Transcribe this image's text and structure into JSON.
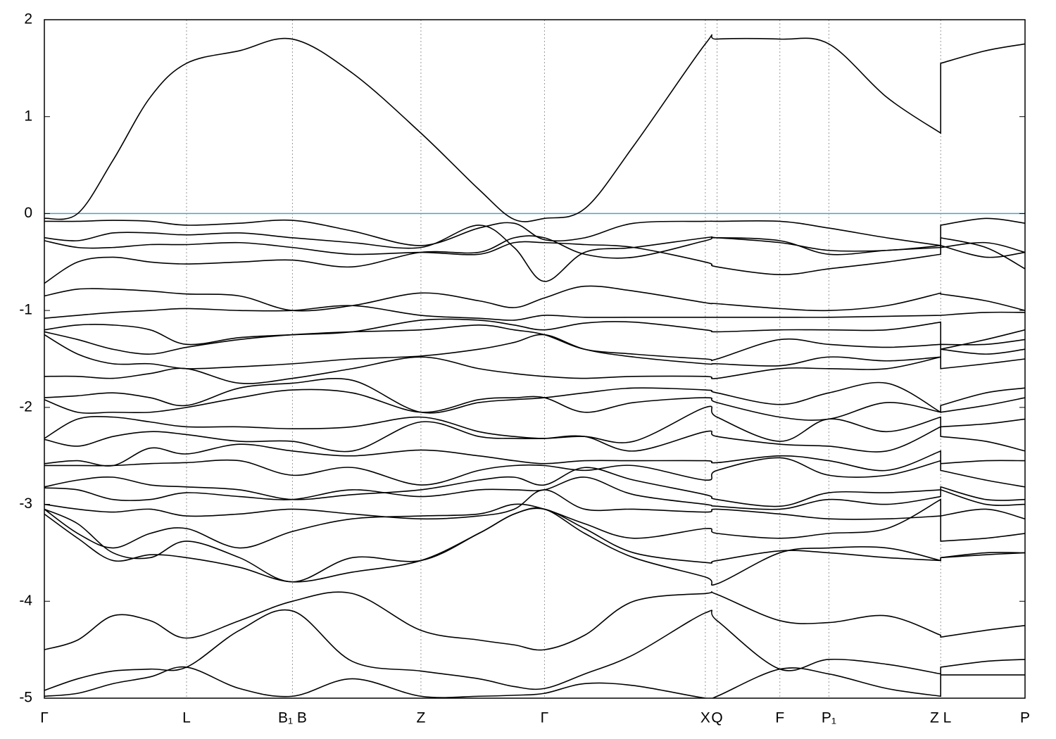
{
  "chart_data": {
    "type": "line",
    "color": "#000000",
    "xgrid": true,
    "ygrid": false,
    "fermi": {
      "value": 0,
      "color": "#4ba5c4"
    },
    "xlim": [
      0,
      1
    ],
    "ylim": [
      -5,
      2
    ],
    "yticks": [
      -5,
      -4,
      -3,
      -2,
      -1,
      0,
      1,
      2
    ],
    "xticks": [
      {
        "value": 0,
        "label": "Γ"
      },
      {
        "value": 0.145,
        "label": "L"
      },
      {
        "value": 0.253,
        "label": "B₁ B"
      },
      {
        "value": 0.384,
        "label": "Z"
      },
      {
        "value": 0.51,
        "label": "Γ"
      },
      {
        "value": 0.674,
        "label": "X"
      },
      {
        "value": 0.686,
        "label": "Q"
      },
      {
        "value": 0.75,
        "label": "F"
      },
      {
        "value": 0.8,
        "label": "P₁"
      },
      {
        "value": 0.914,
        "label": "Z L"
      },
      {
        "value": 1,
        "label": "P"
      }
    ],
    "x": [
      0,
      0.034,
      0.07,
      0.108,
      0.145,
      0.199,
      0.253,
      0.314,
      0.384,
      0.443,
      0.479,
      0.51,
      0.551,
      0.601,
      0.674,
      0.686,
      0.75,
      0.8,
      0.859,
      0.914,
      0.914,
      0.96,
      1
    ],
    "series": [
      {
        "values": [
          -0.05,
          0.0,
          0.55,
          1.2,
          1.55,
          1.68,
          1.8,
          1.45,
          0.83,
          0.25,
          -0.06,
          -0.05,
          0.05,
          0.7,
          1.75,
          1.8,
          1.8,
          1.75,
          1.2,
          0.83,
          1.55,
          1.68,
          1.75
        ]
      },
      {
        "values": [
          -0.08,
          -0.08,
          -0.07,
          -0.08,
          -0.12,
          -0.1,
          -0.07,
          -0.18,
          -0.33,
          -0.15,
          -0.1,
          -0.27,
          -0.25,
          -0.1,
          -0.08,
          -0.08,
          -0.08,
          -0.15,
          -0.25,
          -0.33,
          -0.12,
          -0.05,
          -0.1
        ]
      },
      {
        "values": [
          -0.25,
          -0.28,
          -0.2,
          -0.2,
          -0.22,
          -0.2,
          -0.25,
          -0.3,
          -0.35,
          -0.12,
          -0.35,
          -0.7,
          -0.4,
          -0.35,
          -0.25,
          -0.25,
          -0.3,
          -0.38,
          -0.38,
          -0.33,
          -0.35,
          -0.3,
          -0.4
        ]
      },
      {
        "values": [
          -0.28,
          -0.35,
          -0.35,
          -0.32,
          -0.32,
          -0.3,
          -0.35,
          -0.42,
          -0.4,
          -0.42,
          -0.3,
          -0.3,
          -0.32,
          -0.35,
          -0.5,
          -0.55,
          -0.63,
          -0.57,
          -0.5,
          -0.42,
          -0.25,
          -0.35,
          -0.57
        ]
      },
      {
        "values": [
          -0.72,
          -0.5,
          -0.45,
          -0.5,
          -0.52,
          -0.5,
          -0.48,
          -0.55,
          -0.4,
          -0.4,
          -0.25,
          -0.25,
          -0.42,
          -0.45,
          -0.28,
          -0.25,
          -0.28,
          -0.42,
          -0.38,
          -0.35,
          -0.33,
          -0.45,
          -0.4
        ]
      },
      {
        "values": [
          -0.85,
          -0.78,
          -0.78,
          -0.8,
          -0.83,
          -0.85,
          -1.0,
          -0.95,
          -0.82,
          -0.9,
          -0.97,
          -0.87,
          -0.75,
          -0.8,
          -0.92,
          -0.93,
          -0.98,
          -1.0,
          -0.95,
          -0.82,
          -0.83,
          -0.9,
          -1.0
        ]
      },
      {
        "values": [
          -1.08,
          -1.05,
          -1.02,
          -1.0,
          -0.98,
          -1.0,
          -1.0,
          -0.95,
          -1.05,
          -1.08,
          -1.1,
          -1.05,
          -1.07,
          -1.07,
          -1.07,
          -1.07,
          -1.07,
          -1.07,
          -1.06,
          -1.05,
          -1.05,
          -1.02,
          -1.02
        ]
      },
      {
        "values": [
          -1.2,
          -1.15,
          -1.15,
          -1.2,
          -1.35,
          -1.28,
          -1.25,
          -1.22,
          -1.1,
          -1.1,
          -1.15,
          -1.2,
          -1.13,
          -1.12,
          -1.2,
          -1.22,
          -1.2,
          -1.2,
          -1.2,
          -1.12,
          -1.4,
          -1.3,
          -1.2
        ]
      },
      {
        "values": [
          -1.22,
          -1.3,
          -1.4,
          -1.45,
          -1.38,
          -1.3,
          -1.25,
          -1.22,
          -1.2,
          -1.15,
          -1.2,
          -1.25,
          -1.4,
          -1.45,
          -1.5,
          -1.5,
          -1.3,
          -1.35,
          -1.38,
          -1.35,
          -1.35,
          -1.35,
          -1.3
        ]
      },
      {
        "values": [
          -1.25,
          -1.45,
          -1.55,
          -1.55,
          -1.6,
          -1.58,
          -1.55,
          -1.5,
          -1.47,
          -1.4,
          -1.33,
          -1.25,
          -1.4,
          -1.48,
          -1.55,
          -1.55,
          -1.57,
          -1.48,
          -1.52,
          -1.48,
          -1.6,
          -1.55,
          -1.5
        ]
      },
      {
        "values": [
          -1.68,
          -1.68,
          -1.7,
          -1.65,
          -1.6,
          -1.75,
          -1.7,
          -1.6,
          -1.48,
          -1.6,
          -1.65,
          -1.68,
          -1.7,
          -1.68,
          -1.68,
          -1.7,
          -1.6,
          -1.6,
          -1.6,
          -1.48,
          -1.4,
          -1.45,
          -1.4
        ]
      },
      {
        "values": [
          -1.9,
          -1.88,
          -1.85,
          -1.9,
          -1.98,
          -1.8,
          -1.75,
          -1.72,
          -2.05,
          -1.95,
          -1.92,
          -1.9,
          -1.85,
          -1.8,
          -1.82,
          -1.85,
          -1.97,
          -1.85,
          -1.75,
          -2.05,
          -1.98,
          -1.85,
          -1.8
        ]
      },
      {
        "values": [
          -1.92,
          -2.05,
          -2.05,
          -2.05,
          -2.0,
          -1.9,
          -1.82,
          -1.85,
          -2.05,
          -1.92,
          -1.9,
          -1.9,
          -2.05,
          -1.95,
          -1.9,
          -1.95,
          -2.1,
          -2.12,
          -1.95,
          -2.05,
          -2.05,
          -1.98,
          -1.9
        ]
      },
      {
        "values": [
          -2.32,
          -2.12,
          -2.1,
          -2.15,
          -2.2,
          -2.2,
          -2.22,
          -2.2,
          -2.1,
          -2.25,
          -2.3,
          -2.32,
          -2.3,
          -2.35,
          -2.0,
          -2.1,
          -2.35,
          -2.12,
          -2.25,
          -2.1,
          -2.2,
          -2.17,
          -2.12
        ]
      },
      {
        "values": [
          -2.33,
          -2.4,
          -2.3,
          -2.25,
          -2.28,
          -2.35,
          -2.35,
          -2.45,
          -2.15,
          -2.3,
          -2.32,
          -2.32,
          -2.3,
          -2.45,
          -2.25,
          -2.3,
          -2.38,
          -2.4,
          -2.45,
          -2.2,
          -2.3,
          -2.35,
          -2.45
        ]
      },
      {
        "values": [
          -2.58,
          -2.55,
          -2.6,
          -2.42,
          -2.48,
          -2.38,
          -2.45,
          -2.5,
          -2.44,
          -2.5,
          -2.55,
          -2.58,
          -2.55,
          -2.55,
          -2.55,
          -2.57,
          -2.5,
          -2.55,
          -2.65,
          -2.45,
          -2.58,
          -2.55,
          -2.55
        ]
      },
      {
        "values": [
          -2.6,
          -2.6,
          -2.6,
          -2.58,
          -2.57,
          -2.55,
          -2.7,
          -2.62,
          -2.8,
          -2.65,
          -2.6,
          -2.6,
          -2.65,
          -2.6,
          -2.75,
          -2.65,
          -2.52,
          -2.7,
          -2.7,
          -2.55,
          -2.65,
          -2.75,
          -2.82
        ]
      },
      {
        "values": [
          -2.82,
          -2.75,
          -2.72,
          -2.8,
          -2.82,
          -2.85,
          -2.95,
          -2.9,
          -2.85,
          -2.75,
          -2.72,
          -2.8,
          -2.62,
          -2.75,
          -2.9,
          -2.95,
          -3.02,
          -2.88,
          -2.88,
          -2.85,
          -2.82,
          -2.95,
          -2.95
        ]
      },
      {
        "values": [
          -2.83,
          -2.85,
          -2.95,
          -2.95,
          -2.88,
          -2.92,
          -2.95,
          -2.85,
          -2.92,
          -2.85,
          -2.85,
          -2.85,
          -2.72,
          -2.9,
          -3.0,
          -3.02,
          -3.05,
          -2.95,
          -3.0,
          -2.92,
          -2.85,
          -3.0,
          -3.0
        ]
      },
      {
        "values": [
          -3.0,
          -3.05,
          -3.08,
          -3.05,
          -3.12,
          -3.1,
          -3.05,
          -3.1,
          -3.15,
          -3.12,
          -3.05,
          -2.85,
          -3.05,
          -3.05,
          -3.08,
          -3.05,
          -3.1,
          -3.15,
          -3.15,
          -3.12,
          -3.12,
          -3.05,
          -3.15
        ]
      },
      {
        "values": [
          -3.05,
          -3.3,
          -3.45,
          -3.3,
          -3.25,
          -3.45,
          -3.28,
          -3.15,
          -3.12,
          -3.1,
          -3.0,
          -3.05,
          -3.2,
          -3.35,
          -3.25,
          -3.3,
          -3.35,
          -3.3,
          -3.25,
          -2.95,
          -3.38,
          -3.35,
          -3.3
        ]
      },
      {
        "values": [
          -3.05,
          -3.2,
          -3.5,
          -3.55,
          -3.38,
          -3.55,
          -3.8,
          -3.55,
          -3.58,
          -3.3,
          -3.1,
          -3.05,
          -3.25,
          -3.5,
          -3.6,
          -3.58,
          -3.48,
          -3.5,
          -3.55,
          -3.58,
          -3.55,
          -3.5,
          -3.5
        ]
      },
      {
        "values": [
          -3.1,
          -3.35,
          -3.58,
          -3.52,
          -3.55,
          -3.65,
          -3.8,
          -3.7,
          -3.58,
          -3.3,
          -3.1,
          -3.05,
          -3.3,
          -3.55,
          -3.75,
          -3.82,
          -3.5,
          -3.45,
          -3.45,
          -3.58,
          -3.55,
          -3.52,
          -3.5
        ]
      },
      {
        "values": [
          -4.5,
          -4.4,
          -4.15,
          -4.2,
          -4.38,
          -4.2,
          -4.0,
          -3.92,
          -4.3,
          -4.4,
          -4.45,
          -4.5,
          -4.35,
          -4.0,
          -3.92,
          -3.93,
          -4.2,
          -4.22,
          -4.15,
          -4.35,
          -4.37,
          -4.3,
          -4.25
        ]
      },
      {
        "values": [
          -4.92,
          -4.8,
          -4.72,
          -4.7,
          -4.68,
          -4.3,
          -4.1,
          -4.62,
          -4.72,
          -4.8,
          -4.88,
          -4.9,
          -4.75,
          -4.55,
          -4.12,
          -4.2,
          -4.7,
          -4.6,
          -4.65,
          -4.75,
          -4.68,
          -4.62,
          -4.6
        ]
      },
      {
        "values": [
          -4.98,
          -4.95,
          -4.85,
          -4.78,
          -4.68,
          -4.9,
          -4.98,
          -4.8,
          -4.98,
          -4.98,
          -4.97,
          -4.95,
          -4.85,
          -4.87,
          -5.0,
          -4.98,
          -4.7,
          -4.75,
          -4.9,
          -4.98,
          -4.76,
          -4.76,
          -4.76
        ]
      }
    ]
  }
}
